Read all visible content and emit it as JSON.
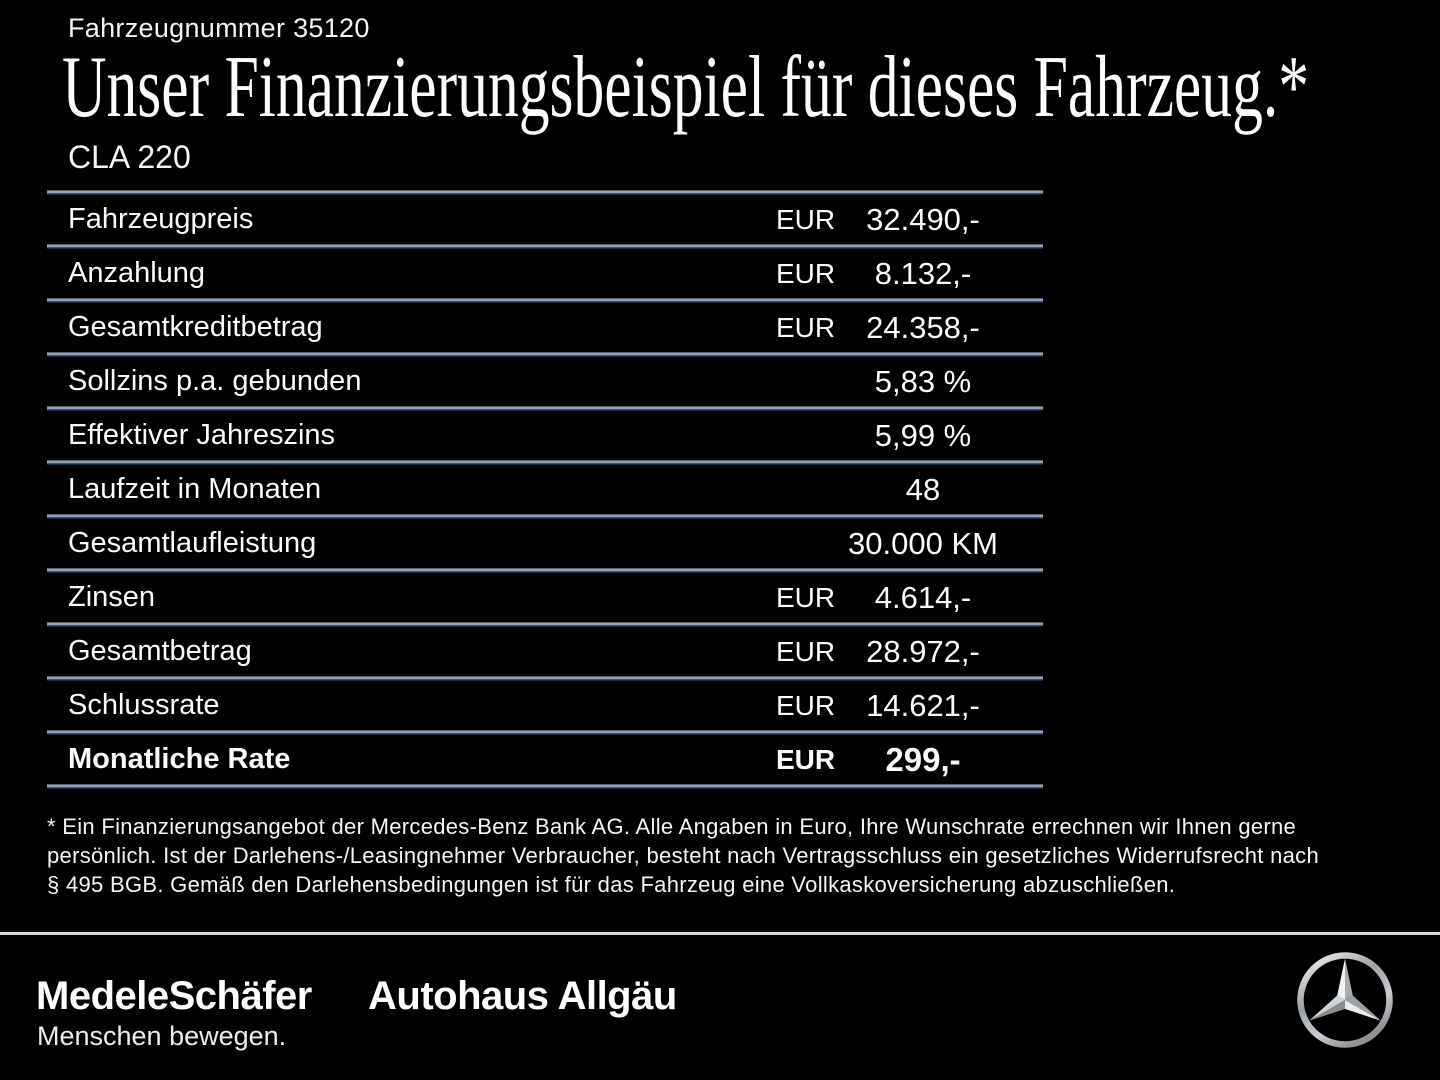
{
  "header": {
    "vehicle_number": "Fahrzeugnummer 35120",
    "title": "Unser Finanzierungsbeispiel für dieses Fahrzeug.*",
    "model": "CLA 220"
  },
  "table": {
    "rows": [
      {
        "label": "Fahrzeugpreis",
        "currency": "EUR",
        "value": "32.490,-",
        "bold": false
      },
      {
        "label": "Anzahlung",
        "currency": "EUR",
        "value": "8.132,-",
        "bold": false
      },
      {
        "label": "Gesamtkreditbetrag",
        "currency": "EUR",
        "value": "24.358,-",
        "bold": false
      },
      {
        "label": "Sollzins p.a. gebunden",
        "currency": "",
        "value": "5,83 %",
        "bold": false
      },
      {
        "label": "Effektiver Jahreszins",
        "currency": "",
        "value": "5,99 %",
        "bold": false
      },
      {
        "label": "Laufzeit in Monaten",
        "currency": "",
        "value": "48",
        "bold": false
      },
      {
        "label": "Gesamtlaufleistung",
        "currency": "",
        "value": "30.000 KM",
        "bold": false
      },
      {
        "label": "Zinsen",
        "currency": "EUR",
        "value": "4.614,-",
        "bold": false
      },
      {
        "label": "Gesamtbetrag",
        "currency": "EUR",
        "value": "28.972,-",
        "bold": false
      },
      {
        "label": "Schlussrate",
        "currency": "EUR",
        "value": "14.621,-",
        "bold": false
      },
      {
        "label": "Monatliche Rate",
        "currency": "EUR",
        "value": "299,-",
        "bold": true
      }
    ]
  },
  "footnote": {
    "lines": [
      "* Ein Finanzierungsangebot der Mercedes-Benz Bank AG. Alle Angaben in Euro, Ihre Wunschrate errechnen wir Ihnen gerne",
      "persönlich. Ist der Darlehens-/Leasingnehmer Verbraucher, besteht nach Vertragsschluss ein gesetzliches Widerrufsrecht nach",
      "§ 495 BGB. Gemäß den Darlehensbedingungen ist für das Fahrzeug eine Vollkaskoversicherung abzuschließen."
    ]
  },
  "footer": {
    "dealer_logo": "MedeleSchäfer",
    "dealer_tagline": "Menschen bewegen.",
    "dealer_name2": "Autohaus Allgäu",
    "brand_icon": "mercedes-star-icon"
  },
  "colors": {
    "background": "#000000",
    "text": "#ffffff",
    "separator_gray": "#aeb4bc",
    "separator_blue": "#1c3258",
    "footer_line": "#d8d8d8",
    "star_silver_light": "#f2f3f4",
    "star_silver_dark": "#878c91"
  }
}
